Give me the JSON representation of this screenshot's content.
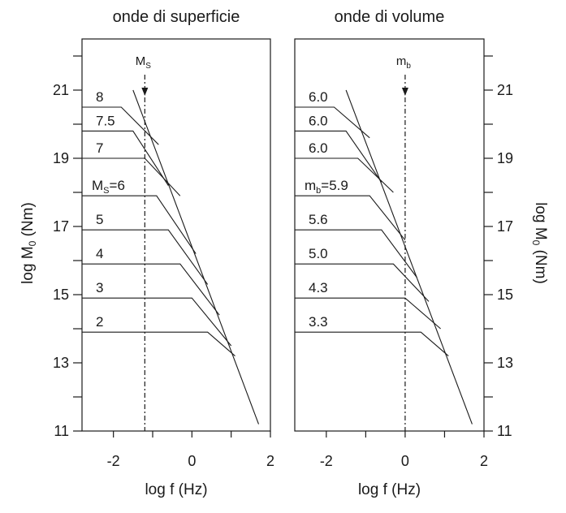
{
  "chart_data": [
    {
      "type": "line",
      "title": "onde di superficie",
      "xlabel": "log f (Hz)",
      "ylabel": "log M",
      "ylabel_sub": "0",
      "ylabel_tail": " (Nm)",
      "xlim": [
        -2.8,
        2
      ],
      "ylim": [
        11,
        22.5
      ],
      "xticks": [
        -2,
        0,
        2
      ],
      "yticks": [
        11,
        13,
        15,
        17,
        19,
        21
      ],
      "ytick_labels": [
        "11",
        "13",
        "15",
        "17",
        "19",
        "21"
      ],
      "marker": {
        "label": "M",
        "sub": "S",
        "x": -1.2
      },
      "envelope": [
        [
          -1.5,
          21.0
        ],
        [
          1.7,
          11.2
        ]
      ],
      "series": [
        {
          "name": "8",
          "points": [
            [
              -2.8,
              20.5
            ],
            [
              -1.8,
              20.5
            ],
            [
              -0.85,
              19.4
            ]
          ]
        },
        {
          "name": "7.5",
          "points": [
            [
              -2.8,
              19.8
            ],
            [
              -1.5,
              19.8
            ],
            [
              -0.6,
              18.2
            ]
          ]
        },
        {
          "name": "7",
          "points": [
            [
              -2.8,
              19.0
            ],
            [
              -1.2,
              19.0
            ],
            [
              -0.3,
              17.9
            ]
          ]
        },
        {
          "name": "Ms=6",
          "label_main": "M",
          "label_sub": "S",
          "label_tail": "=6",
          "points": [
            [
              -2.8,
              17.9
            ],
            [
              -0.9,
              17.9
            ],
            [
              0.1,
              16.2
            ]
          ]
        },
        {
          "name": "5",
          "points": [
            [
              -2.8,
              16.9
            ],
            [
              -0.6,
              16.9
            ],
            [
              0.4,
              15.3
            ]
          ]
        },
        {
          "name": "4",
          "points": [
            [
              -2.8,
              15.9
            ],
            [
              -0.3,
              15.9
            ],
            [
              0.7,
              14.4
            ]
          ]
        },
        {
          "name": "3",
          "points": [
            [
              -2.8,
              14.9
            ],
            [
              0.0,
              14.9
            ],
            [
              1.0,
              13.5
            ]
          ]
        },
        {
          "name": "2",
          "points": [
            [
              -2.8,
              13.9
            ],
            [
              0.4,
              13.9
            ],
            [
              1.1,
              13.2
            ]
          ]
        }
      ]
    },
    {
      "type": "line",
      "title": "onde di volume",
      "xlabel": "log f (Hz)",
      "ylabel": "log M",
      "ylabel_sub": "0",
      "ylabel_tail": " (Nm)",
      "xlim": [
        -2.8,
        2
      ],
      "ylim": [
        11,
        22.5
      ],
      "xticks": [
        -2,
        0,
        2
      ],
      "yticks": [
        11,
        13,
        15,
        17,
        19,
        21
      ],
      "ytick_labels": [
        "11",
        "13",
        "15",
        "17",
        "19",
        "21"
      ],
      "marker": {
        "label": "m",
        "sub": "b",
        "x": 0
      },
      "envelope": [
        [
          -1.5,
          21.0
        ],
        [
          1.7,
          11.2
        ]
      ],
      "series": [
        {
          "name": "6.0",
          "points": [
            [
              -2.8,
              20.5
            ],
            [
              -1.8,
              20.5
            ],
            [
              -0.9,
              19.6
            ]
          ]
        },
        {
          "name": "6.0",
          "points": [
            [
              -2.8,
              19.8
            ],
            [
              -1.5,
              19.8
            ],
            [
              -0.6,
              18.3
            ]
          ]
        },
        {
          "name": "6.0",
          "points": [
            [
              -2.8,
              19.0
            ],
            [
              -1.2,
              19.0
            ],
            [
              -0.3,
              18.0
            ]
          ]
        },
        {
          "name": "mb=5.9",
          "label_main": "m",
          "label_sub": "b",
          "label_tail": "=5.9",
          "points": [
            [
              -2.8,
              17.9
            ],
            [
              -0.9,
              17.9
            ],
            [
              0.0,
              16.6
            ]
          ]
        },
        {
          "name": "5.6",
          "points": [
            [
              -2.8,
              16.9
            ],
            [
              -0.6,
              16.9
            ],
            [
              0.3,
              15.5
            ]
          ]
        },
        {
          "name": "5.0",
          "points": [
            [
              -2.8,
              15.9
            ],
            [
              -0.3,
              15.9
            ],
            [
              0.6,
              14.8
            ]
          ]
        },
        {
          "name": "4.3",
          "points": [
            [
              -2.8,
              14.9
            ],
            [
              0.0,
              14.9
            ],
            [
              0.9,
              14.0
            ]
          ]
        },
        {
          "name": "3.3",
          "points": [
            [
              -2.8,
              13.9
            ],
            [
              0.4,
              13.9
            ],
            [
              1.1,
              13.2
            ]
          ]
        }
      ]
    }
  ]
}
